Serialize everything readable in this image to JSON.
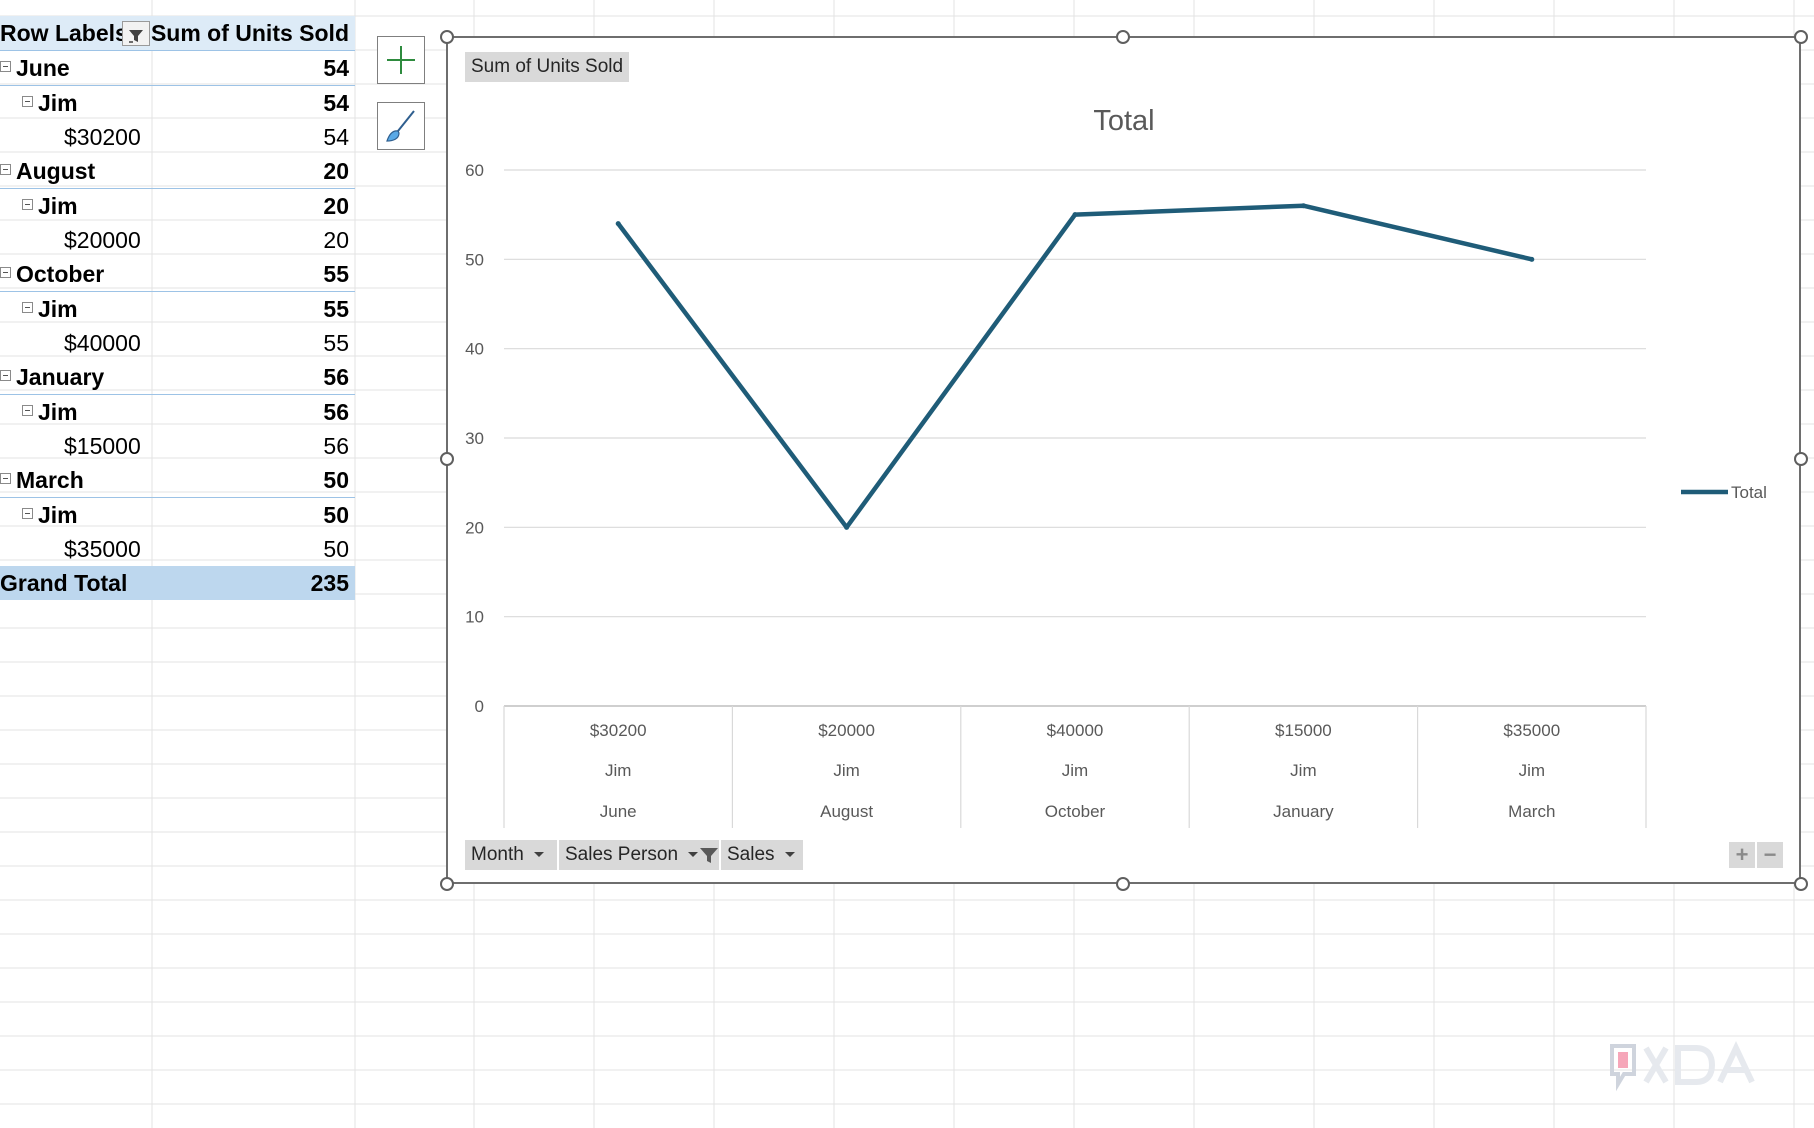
{
  "pivot": {
    "header": {
      "row_labels": "Row Labels",
      "value_header": "Sum of Units Sold"
    },
    "rows": [
      {
        "type": "month",
        "label": "June",
        "value": "54"
      },
      {
        "type": "person",
        "label": "Jim",
        "value": "54"
      },
      {
        "type": "sale",
        "label": "$30200",
        "value": "54"
      },
      {
        "type": "month",
        "label": "August",
        "value": "20"
      },
      {
        "type": "person",
        "label": "Jim",
        "value": "20"
      },
      {
        "type": "sale",
        "label": "$20000",
        "value": "20"
      },
      {
        "type": "month",
        "label": "October",
        "value": "55"
      },
      {
        "type": "person",
        "label": "Jim",
        "value": "55"
      },
      {
        "type": "sale",
        "label": "$40000",
        "value": "55"
      },
      {
        "type": "month",
        "label": "January",
        "value": "56"
      },
      {
        "type": "person",
        "label": "Jim",
        "value": "56"
      },
      {
        "type": "sale",
        "label": "$15000",
        "value": "56"
      },
      {
        "type": "month",
        "label": "March",
        "value": "50"
      },
      {
        "type": "person",
        "label": "Jim",
        "value": "50"
      },
      {
        "type": "sale",
        "label": "$35000",
        "value": "50"
      }
    ],
    "grand_total": {
      "label": "Grand Total",
      "value": "235"
    }
  },
  "side_buttons": {
    "add_icon": "plus-icon",
    "style_icon": "paintbrush-icon"
  },
  "chart": {
    "value_field_button": "Sum of Units Sold",
    "axis_field_buttons": [
      {
        "label": "Month",
        "filtered": false
      },
      {
        "label": "Sales Person",
        "filtered": true
      },
      {
        "label": "Sales",
        "filtered": false
      }
    ],
    "zoom_in": "+",
    "zoom_out": "−"
  },
  "chart_data": {
    "type": "line",
    "title": "Total",
    "xlabel": "",
    "ylabel": "",
    "categories": [
      [
        "$30200",
        "Jim",
        "June"
      ],
      [
        "$20000",
        "Jim",
        "August"
      ],
      [
        "$40000",
        "Jim",
        "October"
      ],
      [
        "$15000",
        "Jim",
        "January"
      ],
      [
        "$35000",
        "Jim",
        "March"
      ]
    ],
    "series": [
      {
        "name": "Total",
        "values": [
          54,
          20,
          55,
          56,
          50
        ],
        "color": "#1f5c78"
      }
    ],
    "ylim": [
      0,
      60
    ],
    "yticks": [
      0,
      10,
      20,
      30,
      40,
      50,
      60
    ],
    "grid": true,
    "legend": "right"
  },
  "colors": {
    "series": "#1f5c78",
    "pivot_header": "#ddebf7",
    "pivot_total": "#bdd7ee",
    "pivot_border": "#9dc3e6"
  }
}
